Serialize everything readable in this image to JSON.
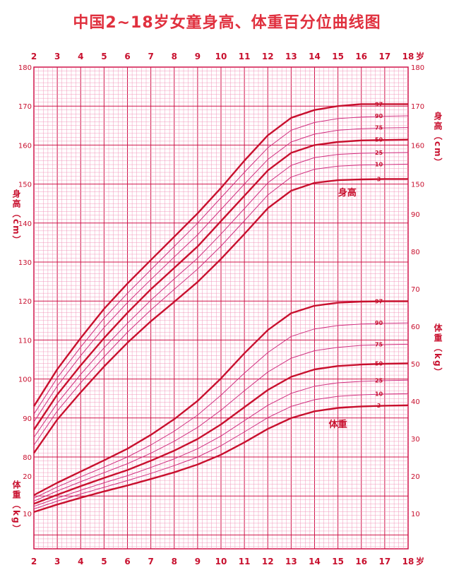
{
  "title": "中国2~18岁女童身高、体重百分位曲线图",
  "age_unit": "岁",
  "labels": {
    "height_axis": "身高（cm）",
    "weight_axis": "体重（kg）",
    "height_curve": "身高",
    "weight_curve": "体重"
  },
  "colors": {
    "background": "#ffffff",
    "fine_grid": "#f08fb4",
    "major_grid": "#d0144a",
    "thick_curve": "#c8102e",
    "thin_curve": "#d03080",
    "text": "#c8102e"
  },
  "chart_data": {
    "type": "line",
    "title": "中国2~18岁女童身高、体重百分位曲线图",
    "x": [
      2,
      3,
      4,
      5,
      6,
      7,
      8,
      9,
      10,
      11,
      12,
      13,
      14,
      15,
      16,
      17,
      18
    ],
    "xlim": [
      2,
      18
    ],
    "x_ticks": [
      "2",
      "3",
      "4",
      "5",
      "6",
      "7",
      "8",
      "9",
      "10",
      "11",
      "12",
      "13",
      "14",
      "15",
      "16",
      "17",
      "18"
    ],
    "height": {
      "ylabel": "身高（cm）",
      "left_ylim": [
        80,
        180
      ],
      "left_ticks": [
        80,
        90,
        100,
        110,
        120,
        130,
        140,
        150,
        160,
        170,
        180
      ],
      "right_ticks": [
        150,
        160,
        170,
        180
      ],
      "series": [
        {
          "name": "97",
          "thick": true,
          "values": [
            93,
            102.5,
            110.5,
            118,
            124.5,
            130.5,
            136.5,
            142.5,
            149,
            156,
            162.5,
            167,
            169,
            170,
            170.5,
            170.5,
            170.5
          ]
        },
        {
          "name": "90",
          "thick": false,
          "values": [
            91,
            100.3,
            108.2,
            115.6,
            122,
            128,
            134,
            140,
            146.5,
            153,
            159.3,
            163.8,
            165.8,
            166.8,
            167.2,
            167.4,
            167.5
          ]
        },
        {
          "name": "75",
          "thick": false,
          "values": [
            89,
            98.2,
            106,
            113.2,
            119.6,
            125.5,
            131.3,
            137,
            143.5,
            150,
            156.3,
            160.8,
            162.8,
            163.8,
            164.2,
            164.4,
            164.5
          ]
        },
        {
          "name": "50",
          "thick": true,
          "values": [
            87,
            96,
            103.5,
            110.5,
            117,
            123,
            128.5,
            134,
            140.5,
            147,
            153.5,
            158,
            160,
            160.8,
            161.2,
            161.3,
            161.4
          ]
        },
        {
          "name": "25",
          "thick": false,
          "values": [
            85,
            93.8,
            101.2,
            108,
            114.3,
            120.2,
            125.7,
            131,
            137.2,
            143.7,
            150.3,
            154.8,
            156.8,
            157.6,
            157.9,
            158,
            158.1
          ]
        },
        {
          "name": "10",
          "thick": false,
          "values": [
            83,
            91.8,
            99,
            105.7,
            112,
            117.7,
            123,
            128.2,
            134.1,
            140.6,
            147.2,
            151.8,
            153.8,
            154.6,
            154.9,
            155,
            155.1
          ]
        },
        {
          "name": "3",
          "thick": true,
          "values": [
            81,
            89.6,
            96.6,
            103.2,
            109.3,
            114.8,
            119.8,
            124.9,
            130.8,
            137.2,
            143.8,
            148.3,
            150.3,
            151,
            151.2,
            151.3,
            151.3
          ]
        }
      ]
    },
    "weight": {
      "ylabel": "体重（kg）",
      "left_ylim": [
        5,
        25
      ],
      "left_ticks": [
        10,
        20
      ],
      "right_ylim": [
        5,
        95
      ],
      "right_ticks": [
        10,
        20,
        30,
        40,
        50,
        60,
        70,
        80,
        90
      ],
      "series": [
        {
          "name": "97",
          "thick": true,
          "values": [
            14.9,
            18.2,
            21.2,
            24.2,
            27.3,
            31,
            35.2,
            40.1,
            46.1,
            52.8,
            59,
            63.5,
            65.5,
            66.3,
            66.6,
            66.7,
            66.7
          ]
        },
        {
          "name": "90",
          "thick": false,
          "values": [
            14.1,
            17.1,
            19.8,
            22.4,
            25.1,
            28.3,
            32,
            36.3,
            41.6,
            47.5,
            53,
            57.3,
            59.3,
            60.2,
            60.6,
            60.8,
            60.9
          ]
        },
        {
          "name": "75",
          "thick": false,
          "values": [
            13.3,
            16,
            18.5,
            20.9,
            23.3,
            26.1,
            29.3,
            33,
            37.6,
            42.8,
            47.8,
            51.5,
            53.5,
            54.4,
            54.9,
            55.1,
            55.2
          ]
        },
        {
          "name": "50",
          "thick": true,
          "values": [
            12.6,
            15,
            17.3,
            19.5,
            21.6,
            24.1,
            26.8,
            29.9,
            33.8,
            38.4,
            43,
            46.5,
            48.5,
            49.4,
            49.8,
            50,
            50.1
          ]
        },
        {
          "name": "25",
          "thick": false,
          "values": [
            11.9,
            14.1,
            16.2,
            18.2,
            20.1,
            22.3,
            24.6,
            27.3,
            30.7,
            34.8,
            38.9,
            42.1,
            44,
            44.9,
            45.3,
            45.5,
            45.6
          ]
        },
        {
          "name": "10",
          "thick": false,
          "values": [
            11.2,
            13.3,
            15.2,
            17,
            18.8,
            20.7,
            22.8,
            25.1,
            28.1,
            31.8,
            35.6,
            38.6,
            40.4,
            41.3,
            41.7,
            41.9,
            42
          ]
        },
        {
          "name": "3",
          "thick": true,
          "values": [
            10.4,
            12.4,
            14.2,
            15.9,
            17.5,
            19.2,
            21,
            23.1,
            25.7,
            29,
            32.6,
            35.5,
            37.3,
            38.2,
            38.6,
            38.8,
            38.9
          ]
        }
      ]
    }
  }
}
